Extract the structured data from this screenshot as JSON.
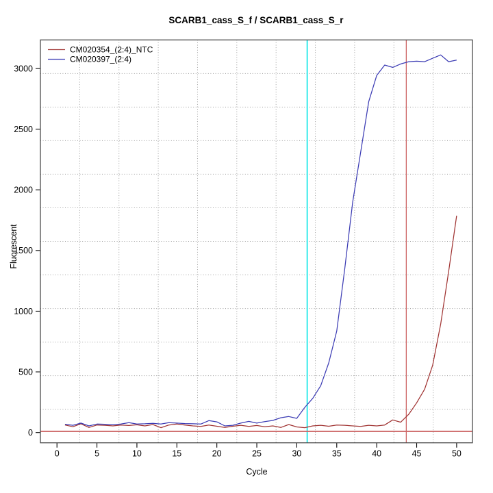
{
  "window": {
    "title": "SCARB1_cass_S_f / SCARB1_cass_S_r"
  },
  "chart_data": {
    "type": "line",
    "title": "SCARB1_cass_S_f / SCARB1_cass_S_r",
    "xlabel": "Cycle",
    "ylabel": "Fluorescent",
    "xlim": [
      -1,
      52
    ],
    "ylim": [
      -60,
      3200
    ],
    "xticks": [
      0,
      5,
      10,
      15,
      20,
      25,
      30,
      35,
      40,
      45,
      50
    ],
    "yticks": [
      0,
      500,
      1000,
      1500,
      2000,
      2500,
      3000
    ],
    "grid": "dotted",
    "legend_position": "top-left",
    "x": [
      1,
      2,
      3,
      4,
      5,
      6,
      7,
      8,
      9,
      10,
      11,
      12,
      13,
      14,
      15,
      16,
      17,
      18,
      19,
      20,
      21,
      22,
      23,
      24,
      25,
      26,
      27,
      28,
      29,
      30,
      31,
      32,
      33,
      34,
      35,
      36,
      37,
      38,
      39,
      40,
      41,
      42,
      43,
      44,
      45,
      46,
      47,
      48,
      49,
      50
    ],
    "series": [
      {
        "name": "CM020354_(2:4)_NTC",
        "color": "#a03332",
        "values": [
          62,
          48,
          72,
          42,
          62,
          60,
          55,
          62,
          58,
          64,
          55,
          66,
          40,
          62,
          70,
          62,
          55,
          50,
          62,
          52,
          42,
          52,
          60,
          50,
          58,
          48,
          55,
          42,
          66,
          46,
          40,
          55,
          60,
          52,
          62,
          60,
          55,
          50,
          60,
          55,
          62,
          104,
          85,
          150,
          245,
          358,
          555,
          894,
          1326,
          1787
        ]
      },
      {
        "name": "CM020397_(2:4)",
        "color": "#3c3cb4",
        "values": [
          68,
          60,
          78,
          55,
          70,
          68,
          65,
          70,
          82,
          70,
          72,
          76,
          70,
          82,
          78,
          74,
          72,
          70,
          98,
          88,
          55,
          60,
          78,
          92,
          78,
          90,
          100,
          122,
          132,
          117,
          207,
          282,
          386,
          574,
          837,
          1350,
          1900,
          2313,
          2727,
          2943,
          3028,
          3009,
          3037,
          3056,
          3060,
          3056,
          3084,
          3112,
          3056,
          3069
        ]
      }
    ],
    "markers": {
      "cyan_vline_x": 31.3,
      "red_vline_x": 43.7,
      "threshold_hline_y": 10,
      "cyan_color": "#00e5e5",
      "light_red_color": "#cd6666"
    },
    "grid_color": "#9e9e9e",
    "box_color": "#4a4a4a"
  }
}
